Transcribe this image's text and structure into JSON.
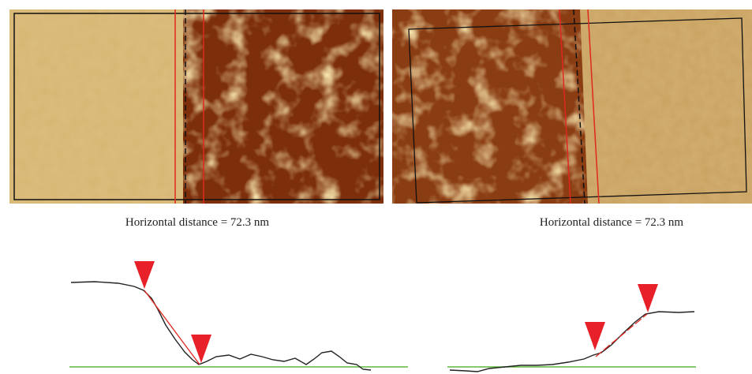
{
  "panels": [
    {
      "caption": "Horizontal distance = 72.3 nm"
    },
    {
      "caption": "Horizontal distance = 72.3 nm"
    }
  ]
}
